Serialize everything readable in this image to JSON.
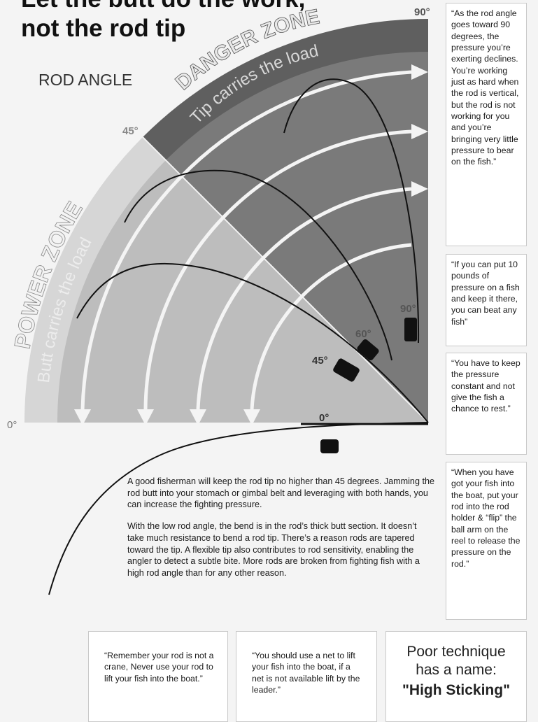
{
  "title": {
    "line1": "Let the butt do the work,",
    "line2": "not the rod tip"
  },
  "diagram": {
    "heading": "ROD ANGLE",
    "danger_zone": "DANGER ZONE",
    "danger_sub": "Tip carries the load",
    "power_zone": "POWER ZONE",
    "power_sub": "Butt carries the load",
    "angle_labels": {
      "deg90_top": "90°",
      "deg45_arc": "45°",
      "deg0_left": "0°",
      "reel_90": "90°",
      "reel_60": "60°",
      "reel_45": "45°",
      "reel_0": "0°"
    },
    "colors": {
      "danger": "#6e6e6e",
      "power": "#c9c9c9",
      "inner": "#b4b4b4",
      "rod": "#111111",
      "arrow": "#ffffff"
    }
  },
  "quotes": {
    "q1": "“As the rod angle goes toward 90 degrees, the pressure you’re exerting declines. You’re working just as hard when the rod is vertical, but the rod is not working for you and you’re bringing very little pressure to bear on the fish.”",
    "q2": "“If you can put 10 pounds of pressure on a fish and keep it there, you can beat any fish”",
    "q3": "“You have to keep the pressure constant and not give the fish a chance to rest.”",
    "q4": "“When you have got your fish into the boat, put your rod into the rod holder & “flip” the ball arm on the reel to release the pressure on the rod.”",
    "q5": "“Remember your rod is not a crane, Never use your rod to lift your fish into the boat.”",
    "q6": "“You should use a net to lift your fish into the boat, if a net is not available lift by the leader.”"
  },
  "body": {
    "p1": "A good fisherman will keep the rod tip no higher than 45 degrees. Jamming the rod butt into your stomach or gimbal belt and leveraging with both hands, you can increase the fighting pressure.",
    "p2": "With the low rod angle, the bend is in the rod’s thick butt section. It doesn’t take much resistance to bend a rod tip. There’s a reason rods are tapered toward the tip. A flexible tip also contributes to rod sensitivity, enabling the angler to detect a subtle bite. More rods are broken from fighting fish with a high rod angle than for any other reason."
  },
  "poor_technique": {
    "line1": "Poor technique",
    "line2": "has a name:",
    "name": "\"High Sticking\""
  }
}
